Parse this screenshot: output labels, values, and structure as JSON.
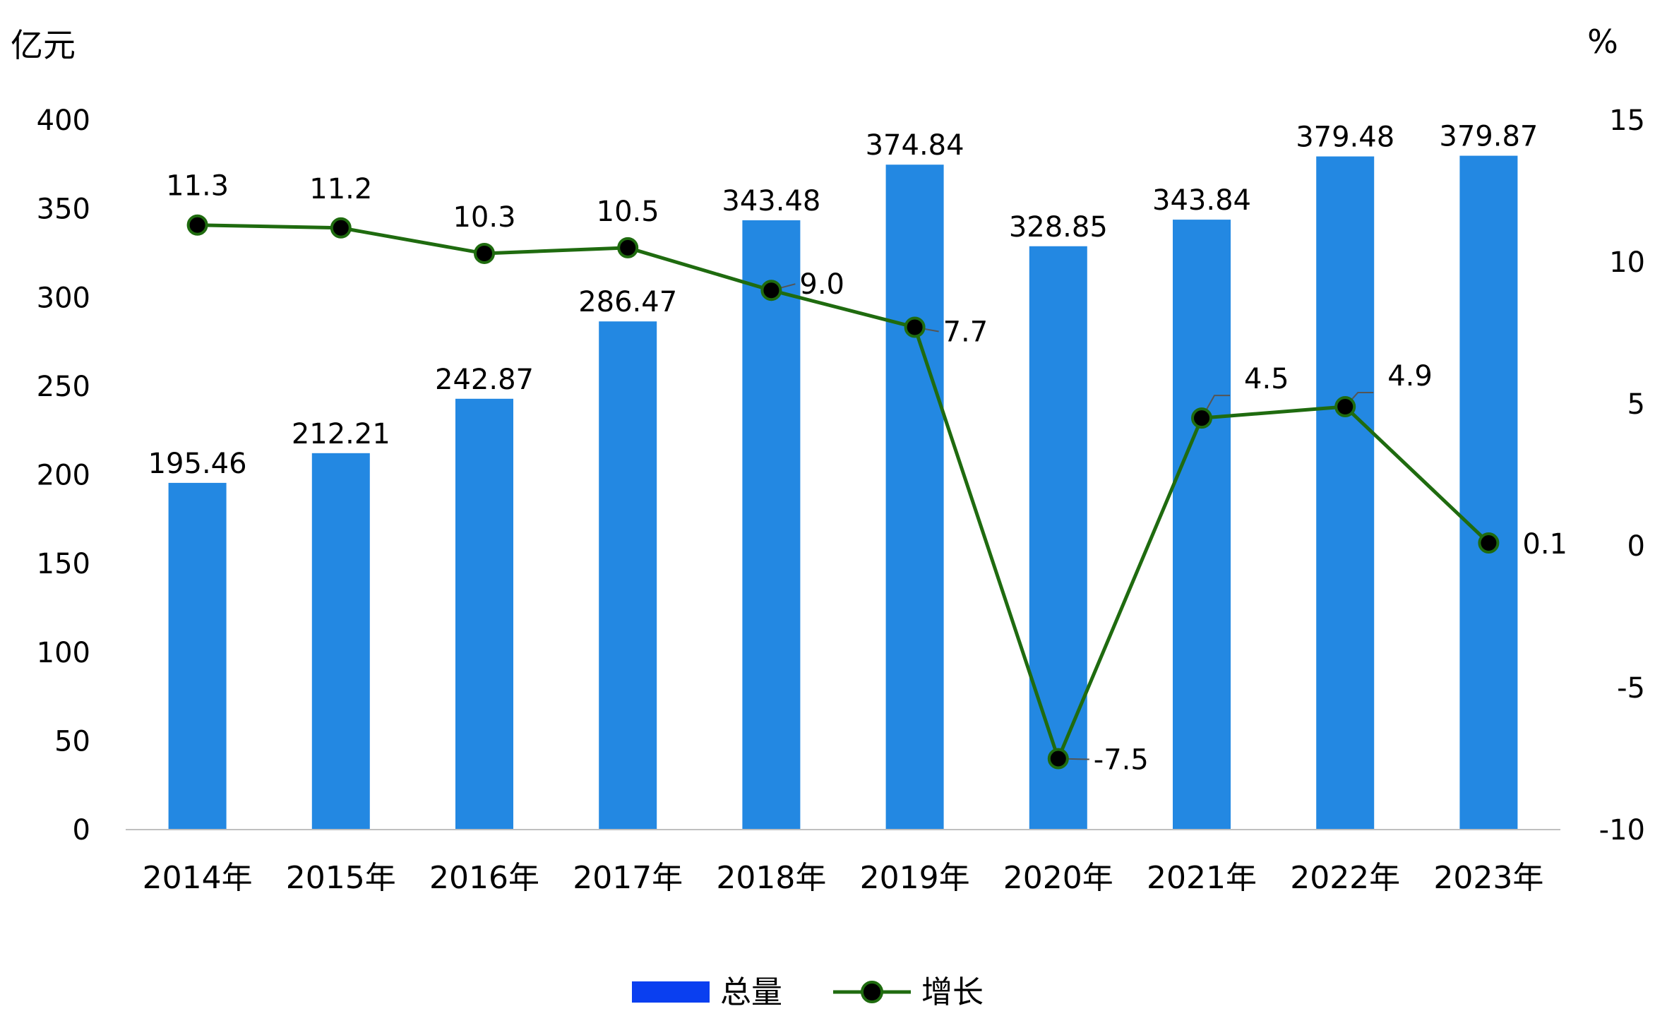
{
  "chart_data": {
    "type": "bar",
    "categories": [
      "2014年",
      "2015年",
      "2016年",
      "2017年",
      "2018年",
      "2019年",
      "2020年",
      "2021年",
      "2022年",
      "2023年"
    ],
    "series": [
      {
        "name": "总量",
        "type": "bar",
        "axis": "left",
        "values": [
          195.46,
          212.21,
          242.87,
          286.47,
          343.48,
          374.84,
          328.85,
          343.84,
          379.48,
          379.87
        ],
        "labels": [
          "195.46",
          "212.21",
          "242.87",
          "286.47",
          "343.48",
          "374.84",
          "328.85",
          "343.84",
          "379.48",
          "379.87"
        ],
        "color": "#2388e2"
      },
      {
        "name": "增长",
        "type": "line",
        "axis": "right",
        "values": [
          11.3,
          11.2,
          10.3,
          10.5,
          9.0,
          7.7,
          -7.5,
          4.5,
          4.9,
          0.1
        ],
        "labels": [
          "11.3",
          "11.2",
          "10.3",
          "10.5",
          "9.0",
          "7.7",
          "-7.5",
          "4.5",
          "4.9",
          "0.1"
        ],
        "color": "#1f6b0f",
        "marker_color": "#000000"
      }
    ],
    "y_left": {
      "unit": "亿元",
      "ylim": [
        0,
        400
      ],
      "ticks": [
        "0",
        "50",
        "100",
        "150",
        "200",
        "250",
        "300",
        "350",
        "400"
      ]
    },
    "y_right": {
      "unit": "%",
      "ylim": [
        -10,
        15
      ],
      "ticks": [
        "-10",
        "-5",
        "0",
        "5",
        "10",
        "15"
      ]
    },
    "legend": {
      "position": "bottom-center",
      "items": [
        "总量",
        "增长"
      ],
      "bar_color": "#0a3ff0"
    },
    "grid": false
  }
}
